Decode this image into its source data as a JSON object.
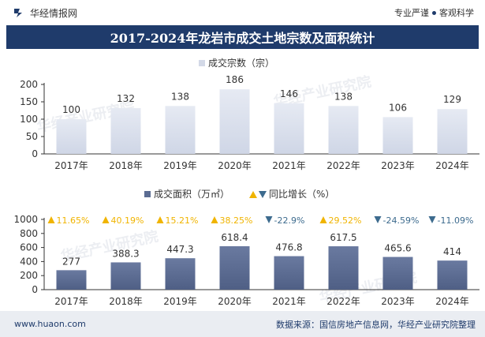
{
  "header": {
    "brand": "华经情报网",
    "tagline_left": "专业严谨",
    "tagline_right": "客观科学"
  },
  "title": "2017-2024年龙岩市成交土地宗数及面积统计",
  "colors": {
    "accent": "#1f3b6b",
    "bar_top": "#dde3ef",
    "bar_bottom": "#5b6c92",
    "up": "#f0b400",
    "down": "#3d6b8e"
  },
  "chart_data": [
    {
      "type": "bar",
      "categories": [
        "2017年",
        "2018年",
        "2019年",
        "2020年",
        "2021年",
        "2022年",
        "2023年",
        "2024年"
      ],
      "series": [
        {
          "name": "成交宗数（宗）",
          "values": [
            100,
            132,
            138,
            186,
            146,
            138,
            106,
            129
          ]
        }
      ],
      "ylim": [
        0,
        200
      ],
      "yticks": [
        0,
        50,
        100,
        150,
        200
      ],
      "legend": "top-center"
    },
    {
      "type": "bar",
      "categories": [
        "2017年",
        "2018年",
        "2019年",
        "2020年",
        "2021年",
        "2022年",
        "2023年",
        "2024年"
      ],
      "series": [
        {
          "name": "成交面积（万㎡）",
          "values": [
            277,
            388.3,
            447.3,
            618.4,
            476.8,
            617.5,
            465.6,
            414
          ]
        }
      ],
      "growth": {
        "name": "同比增长（%）",
        "labels": [
          "11.65%",
          "40.19%",
          "15.21%",
          "38.25%",
          "-22.9%",
          "29.52%",
          "-24.59%",
          "-11.09%"
        ],
        "direction": [
          "up",
          "up",
          "up",
          "up",
          "down",
          "up",
          "down",
          "down"
        ]
      },
      "ylim": [
        0,
        1000
      ],
      "yticks": [
        0,
        200,
        400,
        600,
        800,
        1000
      ],
      "legend": "top-center"
    }
  ],
  "watermarks": [
    "华经产业研究院",
    "华经产业研究院",
    "华经产业研究院",
    "华经产业研究院"
  ],
  "footer": {
    "url": "www.huaon.com",
    "source": "数据来源：国信房地产信息网，华经产业研究院整理"
  }
}
